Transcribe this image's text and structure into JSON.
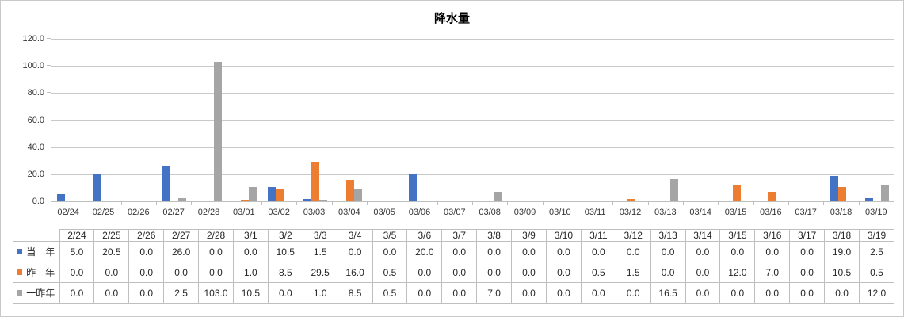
{
  "chart_data": {
    "type": "bar",
    "title": "降水量",
    "xlabel": "",
    "ylabel": "",
    "ylim": [
      0,
      120
    ],
    "ytick_step": 20,
    "ytick_labels": [
      "0.0",
      "20.0",
      "40.0",
      "60.0",
      "80.0",
      "100.0",
      "120.0"
    ],
    "grid": true,
    "legend_position": "table-left-column",
    "x_axis_labels": [
      "02/24",
      "02/25",
      "02/26",
      "02/27",
      "02/28",
      "03/01",
      "03/02",
      "03/03",
      "03/04",
      "03/05",
      "03/06",
      "03/07",
      "03/08",
      "03/09",
      "03/10",
      "03/11",
      "03/12",
      "03/13",
      "03/14",
      "03/15",
      "03/16",
      "03/17",
      "03/18",
      "03/19"
    ],
    "table_headers": [
      "2/24",
      "2/25",
      "2/26",
      "2/27",
      "2/28",
      "3/1",
      "3/2",
      "3/3",
      "3/4",
      "3/5",
      "3/6",
      "3/7",
      "3/8",
      "3/9",
      "3/10",
      "3/11",
      "3/12",
      "3/13",
      "3/14",
      "3/15",
      "3/16",
      "3/17",
      "3/18",
      "3/19"
    ],
    "series": [
      {
        "key": "this-year",
        "name": "当年",
        "label": "当　年",
        "color": "#4472C4",
        "values": [
          5.0,
          20.5,
          0.0,
          26.0,
          0.0,
          0.0,
          10.5,
          1.5,
          0.0,
          0.0,
          20.0,
          0.0,
          0.0,
          0.0,
          0.0,
          0.0,
          0.0,
          0.0,
          0.0,
          0.0,
          0.0,
          0.0,
          19.0,
          2.5
        ]
      },
      {
        "key": "last-year",
        "name": "昨年",
        "label": "昨　年",
        "color": "#ED7D31",
        "values": [
          0.0,
          0.0,
          0.0,
          0.0,
          0.0,
          1.0,
          8.5,
          29.5,
          16.0,
          0.5,
          0.0,
          0.0,
          0.0,
          0.0,
          0.0,
          0.5,
          1.5,
          0.0,
          0.0,
          12.0,
          7.0,
          0.0,
          10.5,
          0.5
        ]
      },
      {
        "key": "two-years-ago",
        "name": "一昨年",
        "label": "一昨年",
        "color": "#A5A5A5",
        "values": [
          0.0,
          0.0,
          0.0,
          2.5,
          103.0,
          10.5,
          0.0,
          1.0,
          8.5,
          0.5,
          0.0,
          0.0,
          7.0,
          0.0,
          0.0,
          0.0,
          0.0,
          16.5,
          0.0,
          0.0,
          0.0,
          0.0,
          0.0,
          12.0
        ]
      }
    ],
    "value_format": "one_decimal"
  },
  "colors": {
    "axis": "#BFBFBF",
    "gridline": "#C9C9C9",
    "table_border": "#BFBFBF",
    "text": "#262626",
    "background": "#FFFFFF"
  }
}
